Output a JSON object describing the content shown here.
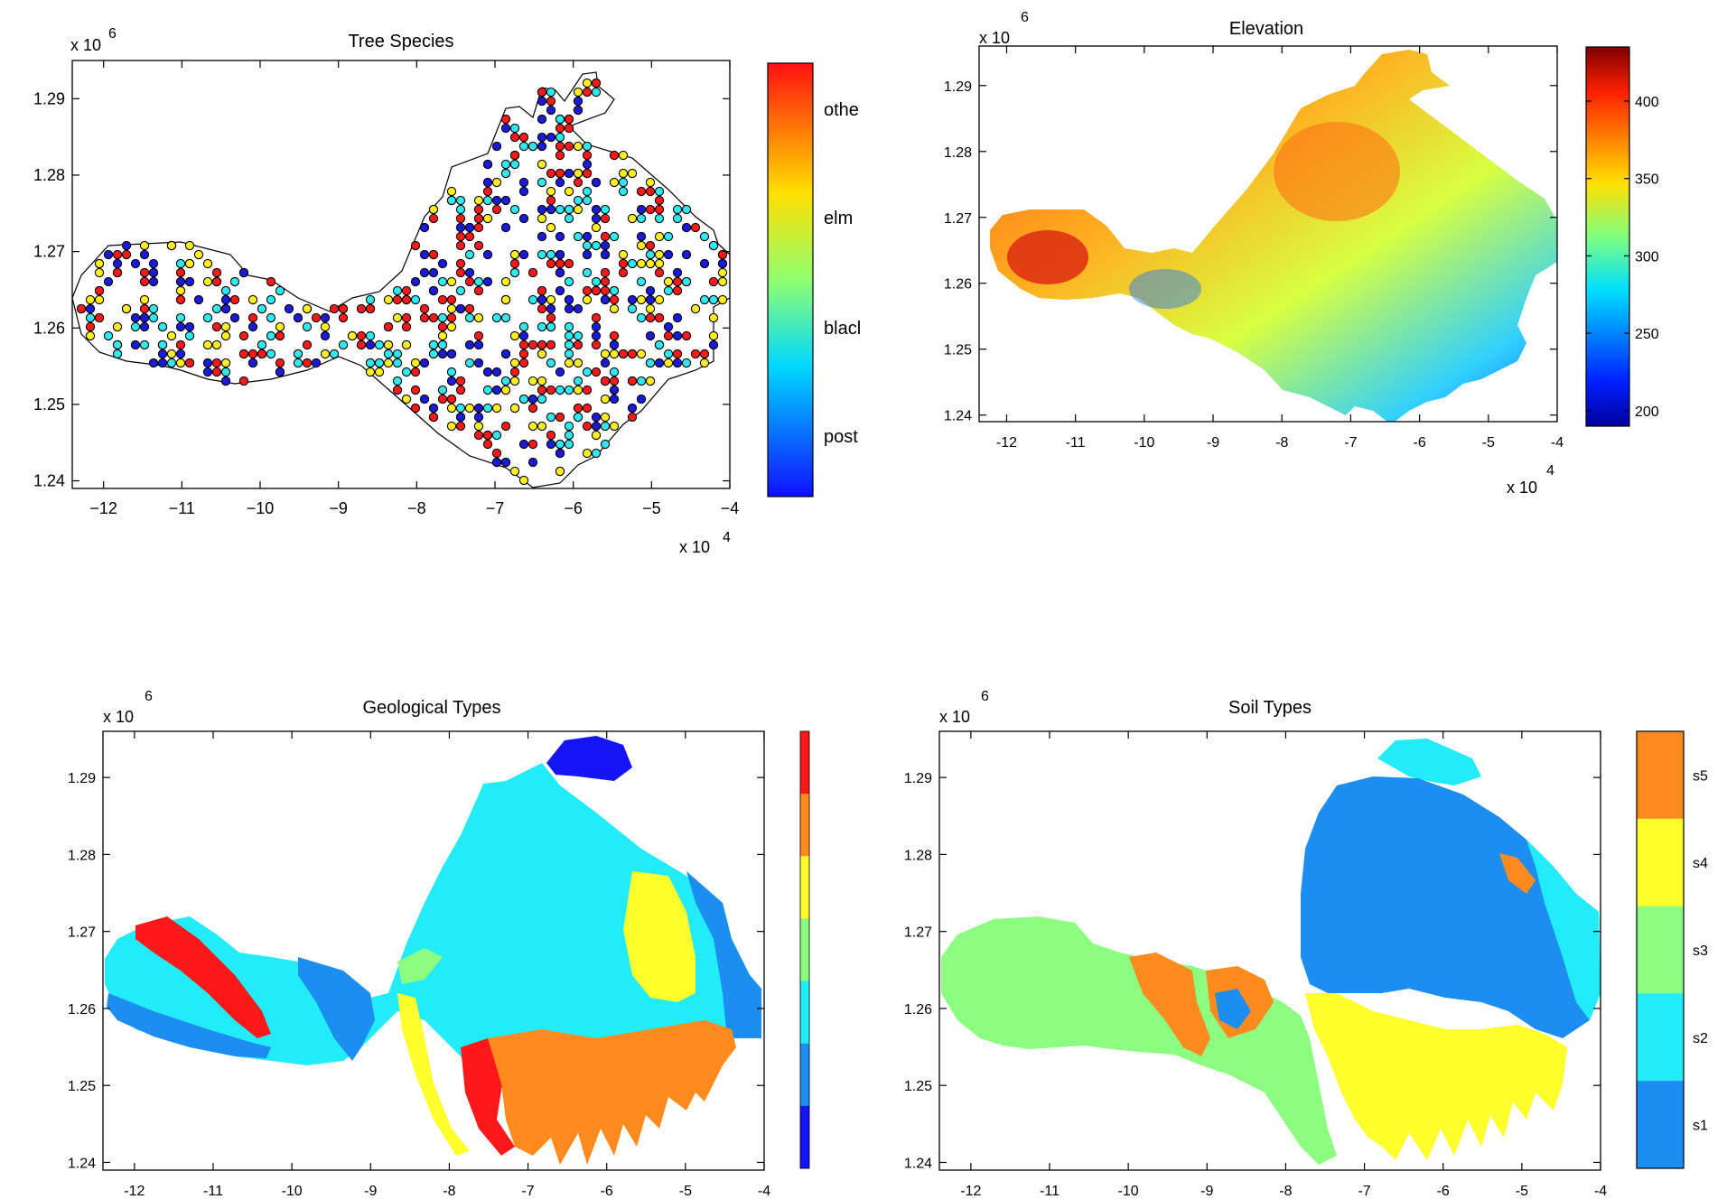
{
  "chart_data": [
    {
      "type": "scatter",
      "title": "Tree Species",
      "x_ticks": [
        "−12",
        "−11",
        "−10",
        "−9",
        "−8",
        "−7",
        "−6",
        "−5",
        "−4"
      ],
      "y_ticks": [
        "1.24",
        "1.25",
        "1.26",
        "1.27",
        "1.28",
        "1.29"
      ],
      "x_multiplier": "x 10",
      "x_multiplier_exp": "4",
      "y_multiplier": "x 10",
      "y_multiplier_exp": "6",
      "xlim": [
        -124000,
        -40000
      ],
      "ylim": [
        1239000,
        1295000
      ],
      "colorbar_labels": [
        "othe",
        "elm",
        "blacl",
        "post"
      ],
      "colormap": "jet"
    },
    {
      "type": "heatmap",
      "title": "Elevation",
      "x_ticks": [
        "-12",
        "-11",
        "-10",
        "-9",
        "-8",
        "-7",
        "-6",
        "-5",
        "-4"
      ],
      "y_ticks": [
        "1.24",
        "1.25",
        "1.26",
        "1.27",
        "1.28",
        "1.29"
      ],
      "x_multiplier": "x 10",
      "x_multiplier_exp": "4",
      "y_multiplier": "x 10",
      "y_multiplier_exp": "6",
      "xlim": [
        -124000,
        -40000
      ],
      "ylim": [
        1239000,
        1296000
      ],
      "colorbar_ticks": [
        "400",
        "350",
        "300",
        "250",
        "200"
      ],
      "color_range": [
        190,
        435
      ],
      "colormap": "jet"
    },
    {
      "type": "heatmap",
      "title": "Geological Types",
      "x_ticks": [
        "-12",
        "-11",
        "-10",
        "-9",
        "-8",
        "-7",
        "-6",
        "-5",
        "-4"
      ],
      "y_ticks": [
        "1.24",
        "1.25",
        "1.26",
        "1.27",
        "1.28",
        "1.29"
      ],
      "y_multiplier": "x 10",
      "y_multiplier_exp": "6",
      "xlim": [
        -124000,
        -40000
      ],
      "ylim": [
        1239000,
        1296000
      ],
      "colorbar_colors": [
        "#ff1818",
        "#ff8a1e",
        "#ffff2c",
        "#8cff80",
        "#22ecfa",
        "#1c8ef2",
        "#1414f4"
      ],
      "colormap": "jet"
    },
    {
      "type": "heatmap",
      "title": "Soil Types",
      "x_ticks": [
        "-12",
        "-11",
        "-10",
        "-9",
        "-8",
        "-7",
        "-6",
        "-5",
        "-4"
      ],
      "y_ticks": [
        "1.24",
        "1.25",
        "1.26",
        "1.27",
        "1.28",
        "1.29"
      ],
      "y_multiplier": "x 10",
      "y_multiplier_exp": "6",
      "xlim": [
        -124000,
        -40000
      ],
      "ylim": [
        1239000,
        1296000
      ],
      "categories": [
        "s5",
        "s4",
        "s3",
        "s2",
        "s1"
      ],
      "category_colors": [
        "#ff8a1e",
        "#ffff2c",
        "#8cff80",
        "#22ecfa",
        "#1c8ef2"
      ],
      "colormap": "jet"
    }
  ]
}
